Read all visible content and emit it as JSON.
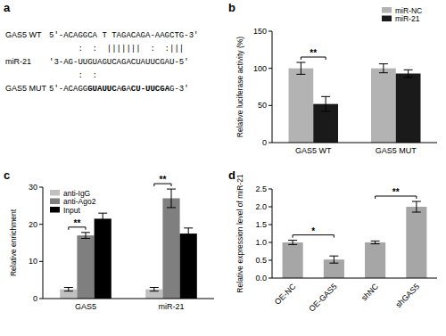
{
  "diagram": {
    "title": "a",
    "rows": [
      {
        "label": "GAS5 WT",
        "segments": [
          {
            "text": "5'-ACAGGCA T TAGACAGA-AAGCTG-3'"
          }
        ]
      },
      {
        "segments": [
          {
            "text": "      :  :  |||||||  :  :|||"
          }
        ]
      },
      {
        "label": "miR-21",
        "segments": [
          {
            "text": "'3-AG-UUGUAGUCAGACUAUUCGAU-5'"
          }
        ]
      },
      {
        "segments": [
          {
            "text": "      :  :"
          }
        ]
      },
      {
        "label": "GAS5 MUT",
        "segments": [
          {
            "text": "5'-ACAGG"
          },
          {
            "text": "GUAUUC",
            "bold": true
          },
          {
            "text": "A"
          },
          {
            "text": "G",
            "bold": true
          },
          {
            "text": "A"
          },
          {
            "text": "CU-UUCGA",
            "bold": true
          },
          {
            "text": "G-3'"
          }
        ]
      }
    ]
  },
  "chart_data": [
    {
      "type": "bar",
      "title": "b",
      "y_label": "Relative luciferase activity (%)",
      "categories": [
        "GAS5 WT",
        "GAS5 MUT"
      ],
      "series": [
        {
          "name": "miR-NC",
          "color": "#b3b3b3",
          "values": [
            100,
            100
          ],
          "errors": [
            8,
            6
          ]
        },
        {
          "name": "miR-21",
          "color": "#1a1a1a",
          "values": [
            52,
            93
          ],
          "errors": [
            10,
            5
          ]
        }
      ],
      "ylim": [
        0,
        150
      ],
      "yticks": [
        0,
        50,
        100,
        150
      ],
      "grid": false,
      "legend": "top-right",
      "annotations": [
        {
          "text": "**",
          "category": "GAS5 WT",
          "between": [
            "miR-NC",
            "miR-21"
          ]
        }
      ]
    },
    {
      "type": "bar",
      "title": "c",
      "y_label": "Relative enrichment",
      "categories": [
        "GAS5",
        "miR-21"
      ],
      "series": [
        {
          "name": "anti-IgG",
          "color": "#c0c0c0",
          "values": [
            2.5,
            2.5
          ],
          "errors": [
            0.5,
            0.5
          ]
        },
        {
          "name": "anti-Ago2",
          "color": "#7f7f7f",
          "values": [
            17,
            27
          ],
          "errors": [
            0.8,
            2.5
          ]
        },
        {
          "name": "Input",
          "color": "#000000",
          "values": [
            21.5,
            17.5
          ],
          "errors": [
            1.5,
            1.5
          ]
        }
      ],
      "ylim": [
        0,
        30
      ],
      "yticks": [
        0,
        10,
        20,
        30
      ],
      "grid": false,
      "legend": "top-left",
      "annotations": [
        {
          "text": "**",
          "category": "GAS5",
          "between": [
            "anti-IgG",
            "anti-Ago2"
          ]
        },
        {
          "text": "**",
          "category": "miR-21",
          "between": [
            "anti-IgG",
            "anti-Ago2"
          ]
        }
      ]
    },
    {
      "type": "bar",
      "title": "d",
      "y_label": "Relative expression level of miR-21",
      "categories": [
        "OE-NC",
        "OE-GAS5",
        "shNC",
        "shGAS5"
      ],
      "values": [
        1.0,
        0.52,
        1.0,
        2.0
      ],
      "errors": [
        0.06,
        0.1,
        0.04,
        0.15
      ],
      "color": "#a6a6a6",
      "ylim": [
        0,
        2.5
      ],
      "yticks": [
        {
          "value": 0,
          "label": "0.0"
        },
        {
          "value": 0.5,
          "label": "0.5"
        },
        {
          "value": 1,
          "label": "1.0"
        },
        {
          "value": 1.5,
          "label": "1.5"
        },
        {
          "value": 2,
          "label": "2.0"
        },
        {
          "value": 2.5,
          "label": "2.5"
        }
      ],
      "grid": false,
      "annotations": [
        {
          "text": "*",
          "between": [
            "OE-NC",
            "OE-GAS5"
          ]
        },
        {
          "text": "**",
          "between": [
            "shNC",
            "shGAS5"
          ]
        }
      ]
    }
  ]
}
